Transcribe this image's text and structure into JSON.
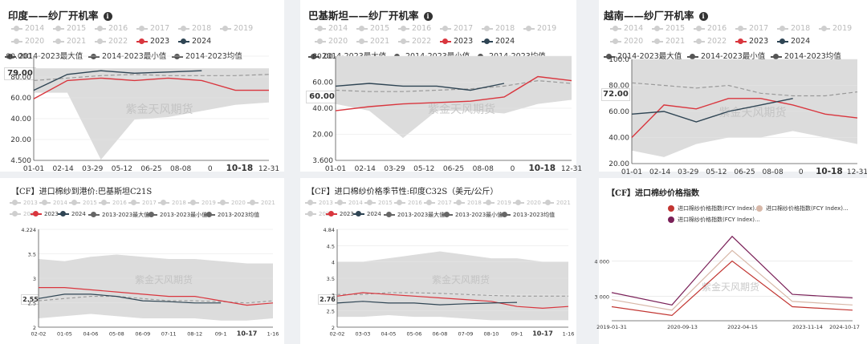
{
  "panels": [
    {
      "title": "印度——纱厂开机率",
      "legend_row1": [
        [
          "2014",
          0
        ],
        [
          "2015",
          0
        ],
        [
          "2016",
          0
        ],
        [
          "2017",
          0
        ],
        [
          "2018",
          0
        ],
        [
          "2019",
          0
        ]
      ],
      "legend_row2": [
        [
          "2020",
          0
        ],
        [
          "2021",
          0
        ],
        [
          "2022",
          0
        ],
        [
          "2023",
          1
        ],
        [
          "2024",
          1
        ]
      ],
      "legend_row3": [
        "2014-2023最大值",
        "2014-2023最小值",
        "2014-2023均值"
      ],
      "badge": "79.00",
      "y_ticks": [
        "90.000",
        "80.00",
        "60.00",
        "40.00",
        "20.00",
        "4.500"
      ],
      "x_ticks": [
        "01-01",
        "02-14",
        "03-29",
        "05-12",
        "06-25",
        "08-08",
        "0",
        "10-18",
        "12-31"
      ],
      "watermark": "紫金天风期货"
    },
    {
      "title": "巴基斯坦——纱厂开机率",
      "legend_row1": [
        [
          "2014",
          0
        ],
        [
          "2015",
          0
        ],
        [
          "2016",
          0
        ],
        [
          "2017",
          0
        ],
        [
          "2018",
          0
        ],
        [
          "2019",
          0
        ]
      ],
      "legend_row2": [
        [
          "2020",
          0
        ],
        [
          "2021",
          0
        ],
        [
          "2022",
          0
        ],
        [
          "2023",
          1
        ],
        [
          "2024",
          1
        ]
      ],
      "legend_row3": [
        "2014-2023最大值",
        "2014-2023最小值",
        "2014-2023均值"
      ],
      "badge": "60.00",
      "y_ticks": [
        "80.00",
        "60.00",
        "40.00",
        "20.00",
        "3.600"
      ],
      "x_ticks": [
        "01-01",
        "02-14",
        "03-29",
        "05-12",
        "06-25",
        "08-08",
        "0",
        "10-18",
        "12-31"
      ],
      "watermark": "紫金天风期货"
    },
    {
      "title": "越南——纱厂开机率",
      "legend_row1": [
        [
          "2014",
          0
        ],
        [
          "2015",
          0
        ],
        [
          "2016",
          0
        ],
        [
          "2017",
          0
        ],
        [
          "2018",
          0
        ],
        [
          "2019",
          0
        ]
      ],
      "legend_row2": [
        [
          "2020",
          0
        ],
        [
          "2021",
          0
        ],
        [
          "2022",
          0
        ],
        [
          "2023",
          1
        ],
        [
          "2024",
          1
        ]
      ],
      "legend_row3": [
        "2014-2023最大值",
        "2014-2023最小值",
        "2014-2023均值"
      ],
      "badge": "72.00",
      "y_ticks": [
        "100.0",
        "80.00",
        "60.00",
        "40.00",
        "20.00"
      ],
      "x_ticks": [
        "01-01",
        "02-14",
        "03-29",
        "05-12",
        "06-25",
        "08-08",
        "0",
        "10-18",
        "12-31"
      ],
      "watermark": "紫金天风期货"
    },
    {
      "title": "【CF】进口棉纱到港价:巴基斯坦C21S",
      "legend_row1": [
        "2013",
        "2014",
        "2015",
        "2016",
        "2017",
        "2018",
        "2019",
        "2020",
        "2021"
      ],
      "legend_row2": [
        "2022",
        "2023",
        "2024",
        "2013-2023最大值",
        "2013-2023最小值",
        "2013-2023均值"
      ],
      "badge": "2.55",
      "y_ticks": [
        "4.224",
        "3.5",
        "3",
        "2.5",
        "2"
      ],
      "x_ticks": [
        "02-02",
        "01-05",
        "04-06",
        "05-08",
        "06-09",
        "07-11",
        "08-12",
        "09-1",
        "10-17",
        "1-16"
      ],
      "watermark": "紫金天风期货"
    },
    {
      "title": "【CF】进口棉纱价格季节性:印度C32S（美元/公斤）",
      "legend_row1": [
        "2013",
        "2014",
        "2015",
        "2016",
        "2017",
        "2018",
        "2019",
        "2020",
        "2021"
      ],
      "legend_row2": [
        "2022",
        "2023",
        "2024",
        "2013-2023最大值",
        "2013-2023最小值",
        "2013-2023均值"
      ],
      "badge": "2.76",
      "y_ticks": [
        "4.84",
        "4.5",
        "4",
        "3.5",
        "3",
        "2.5",
        "2"
      ],
      "x_ticks": [
        "02-02",
        "03-03",
        "04-05",
        "05-06",
        "06-08",
        "07-09",
        "08-10",
        "09-1",
        "10-17",
        "1-16"
      ],
      "watermark": "紫金天风期货"
    },
    {
      "title": "【CF】进口棉纱价格指数",
      "legend": [
        "进口棉纱价格指数(FCY Index)...",
        "进口棉纱价格指数(FCY Index)...",
        "进口棉纱价格指数(FCY Index)..."
      ],
      "y_ticks": [
        "4 000",
        "3 000"
      ],
      "x_ticks": [
        "2019-01-31",
        "2020-09-13",
        "2022-04-15",
        "2023-11-14",
        "2024-10-17"
      ],
      "watermark": "紫金天风期货"
    }
  ],
  "colors": {
    "c2023": "#d9363e",
    "c2024": "#2f4554",
    "band": "#dcdcdc",
    "avg": "#999999",
    "idx1": "#c23531",
    "idx2": "#d8b8a8",
    "idx3": "#7a2058"
  },
  "chart_data": [
    {
      "type": "line",
      "title": "印度——纱厂开机率",
      "ylim": [
        4.5,
        90
      ],
      "x": [
        "01-01",
        "02-14",
        "03-29",
        "05-12",
        "06-25",
        "08-08",
        "10-18",
        "12-31"
      ],
      "series": [
        {
          "name": "2014-2023最大值",
          "values": [
            80,
            80,
            80,
            80,
            80,
            80,
            80,
            80
          ]
        },
        {
          "name": "2014-2023最小值",
          "values": [
            60,
            60,
            5,
            38,
            40,
            45,
            50,
            52
          ]
        },
        {
          "name": "2014-2023均值",
          "values": [
            70,
            72,
            74,
            75,
            74,
            74,
            74,
            75
          ]
        },
        {
          "name": "2023",
          "values": [
            55,
            70,
            72,
            70,
            72,
            70,
            62,
            62
          ]
        },
        {
          "name": "2024",
          "values": [
            62,
            75,
            78,
            76,
            77,
            78,
            null,
            null
          ]
        }
      ]
    },
    {
      "type": "line",
      "title": "巴基斯坦——纱厂开机率",
      "ylim": [
        3.6,
        80
      ],
      "x": [
        "01-01",
        "02-14",
        "03-29",
        "05-12",
        "06-25",
        "08-08",
        "10-18",
        "12-31"
      ],
      "series": [
        {
          "name": "2014-2023最大值",
          "values": [
            80,
            80,
            80,
            80,
            80,
            80,
            80,
            80
          ]
        },
        {
          "name": "2014-2023最小值",
          "values": [
            45,
            40,
            20,
            40,
            40,
            38,
            45,
            48
          ]
        },
        {
          "name": "2014-2023均值",
          "values": [
            55,
            54,
            54,
            55,
            56,
            58,
            62,
            60
          ]
        },
        {
          "name": "2023",
          "values": [
            40,
            43,
            45,
            46,
            47,
            50,
            65,
            62
          ]
        },
        {
          "name": "2024",
          "values": [
            58,
            60,
            58,
            58,
            55,
            60,
            null,
            null
          ]
        }
      ]
    },
    {
      "type": "line",
      "title": "越南——纱厂开机率",
      "ylim": [
        20,
        100
      ],
      "x": [
        "01-01",
        "02-14",
        "03-29",
        "05-12",
        "06-25",
        "08-08",
        "10-18",
        "12-31"
      ],
      "series": [
        {
          "name": "2014-2023最大值",
          "values": [
            100,
            100,
            100,
            100,
            100,
            100,
            100,
            100
          ]
        },
        {
          "name": "2014-2023最小值",
          "values": [
            30,
            25,
            35,
            40,
            40,
            45,
            40,
            35
          ]
        },
        {
          "name": "2014-2023均值",
          "values": [
            82,
            80,
            78,
            80,
            74,
            72,
            72,
            75
          ]
        },
        {
          "name": "2023",
          "values": [
            40,
            65,
            62,
            70,
            70,
            65,
            58,
            55
          ]
        },
        {
          "name": "2024",
          "values": [
            58,
            60,
            52,
            60,
            65,
            70,
            null,
            null
          ]
        }
      ]
    },
    {
      "type": "line",
      "title": "【CF】进口棉纱到港价:巴基斯坦C21S",
      "ylim": [
        2,
        4.224
      ],
      "x": [
        "02-02",
        "01-05",
        "04-06",
        "05-08",
        "06-09",
        "07-11",
        "08-12",
        "09-1",
        "10-17",
        "1-16"
      ],
      "series": [
        {
          "name": "2013-2023最大值",
          "values": [
            3.55,
            3.5,
            3.6,
            3.65,
            3.6,
            3.55,
            3.55,
            3.5,
            3.45,
            3.45
          ]
        },
        {
          "name": "2013-2023最小值",
          "values": [
            2.2,
            2.25,
            2.3,
            2.25,
            2.2,
            2.2,
            2.2,
            2.15,
            2.15,
            2.2
          ]
        },
        {
          "name": "2013-2023均值",
          "values": [
            2.6,
            2.65,
            2.7,
            2.7,
            2.65,
            2.6,
            2.6,
            2.58,
            2.55,
            2.6
          ]
        },
        {
          "name": "2023",
          "values": [
            2.9,
            2.9,
            2.85,
            2.8,
            2.75,
            2.7,
            2.7,
            2.6,
            2.5,
            2.55
          ]
        },
        {
          "name": "2024",
          "values": [
            2.65,
            2.75,
            2.75,
            2.7,
            2.6,
            2.58,
            2.55,
            2.55,
            null,
            null
          ]
        }
      ]
    },
    {
      "type": "line",
      "title": "【CF】进口棉纱价格季节性:印度C32S（美元/公斤）",
      "ylim": [
        2,
        4.84
      ],
      "x": [
        "02-02",
        "03-03",
        "04-05",
        "05-06",
        "06-08",
        "07-09",
        "08-10",
        "09-1",
        "10-17",
        "1-16"
      ],
      "series": [
        {
          "name": "2013-2023最大值",
          "values": [
            3.9,
            3.9,
            4.0,
            4.1,
            4.2,
            4.1,
            4.0,
            4.0,
            3.9,
            3.9
          ]
        },
        {
          "name": "2013-2023最小值",
          "values": [
            2.3,
            2.3,
            2.35,
            2.3,
            2.3,
            2.25,
            2.2,
            2.2,
            2.2,
            2.2
          ]
        },
        {
          "name": "2013-2023均值",
          "values": [
            2.95,
            2.95,
            3.0,
            3.0,
            2.98,
            2.95,
            2.92,
            2.9,
            2.9,
            2.9
          ]
        },
        {
          "name": "2023",
          "values": [
            2.9,
            3.0,
            2.95,
            2.9,
            2.85,
            2.8,
            2.75,
            2.6,
            2.55,
            2.6
          ]
        },
        {
          "name": "2024",
          "values": [
            2.7,
            2.75,
            2.7,
            2.7,
            2.65,
            2.68,
            2.7,
            2.72,
            null,
            null
          ]
        }
      ]
    },
    {
      "type": "line",
      "title": "【CF】进口棉纱价格指数",
      "ylim": [
        2300,
        4900
      ],
      "x": [
        "2019-01-31",
        "2020-09-13",
        "2022-04-15",
        "2023-11-14",
        "2024-10-17"
      ],
      "series": [
        {
          "name": "进口棉纱价格指数(FCY Index)...",
          "values": [
            2700,
            2450,
            4000,
            2700,
            2600
          ]
        },
        {
          "name": "进口棉纱价格指数(FCY Index)...",
          "values": [
            2900,
            2600,
            4300,
            2850,
            2750
          ]
        },
        {
          "name": "进口棉纱价格指数(FCY Index)...",
          "values": [
            3100,
            2750,
            4700,
            3050,
            2950
          ]
        }
      ]
    }
  ]
}
